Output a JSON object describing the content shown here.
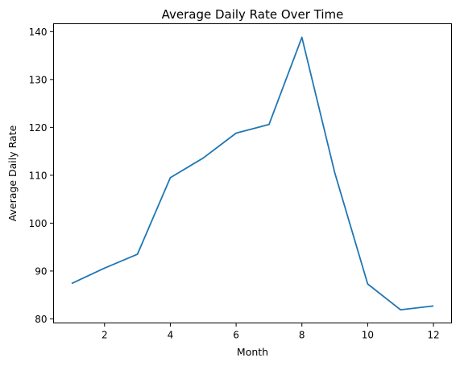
{
  "chart_data": {
    "type": "line",
    "title": "Average Daily Rate Over Time",
    "xlabel": "Month",
    "ylabel": "Average Daily Rate",
    "xlim": [
      0.45,
      12.55
    ],
    "ylim": [
      79.15,
      141.65
    ],
    "xticks": [
      2,
      4,
      6,
      8,
      10,
      12
    ],
    "yticks": [
      80,
      90,
      100,
      110,
      120,
      130,
      140
    ],
    "grid": false,
    "series": [
      {
        "x": [
          1,
          2,
          3,
          4,
          5,
          6,
          7,
          8,
          9,
          10,
          11,
          12
        ],
        "y": [
          87.4,
          90.6,
          93.5,
          109.5,
          113.6,
          118.8,
          120.6,
          138.8,
          110.5,
          87.3,
          81.9,
          82.7
        ],
        "color": "#1f77b4"
      }
    ]
  }
}
